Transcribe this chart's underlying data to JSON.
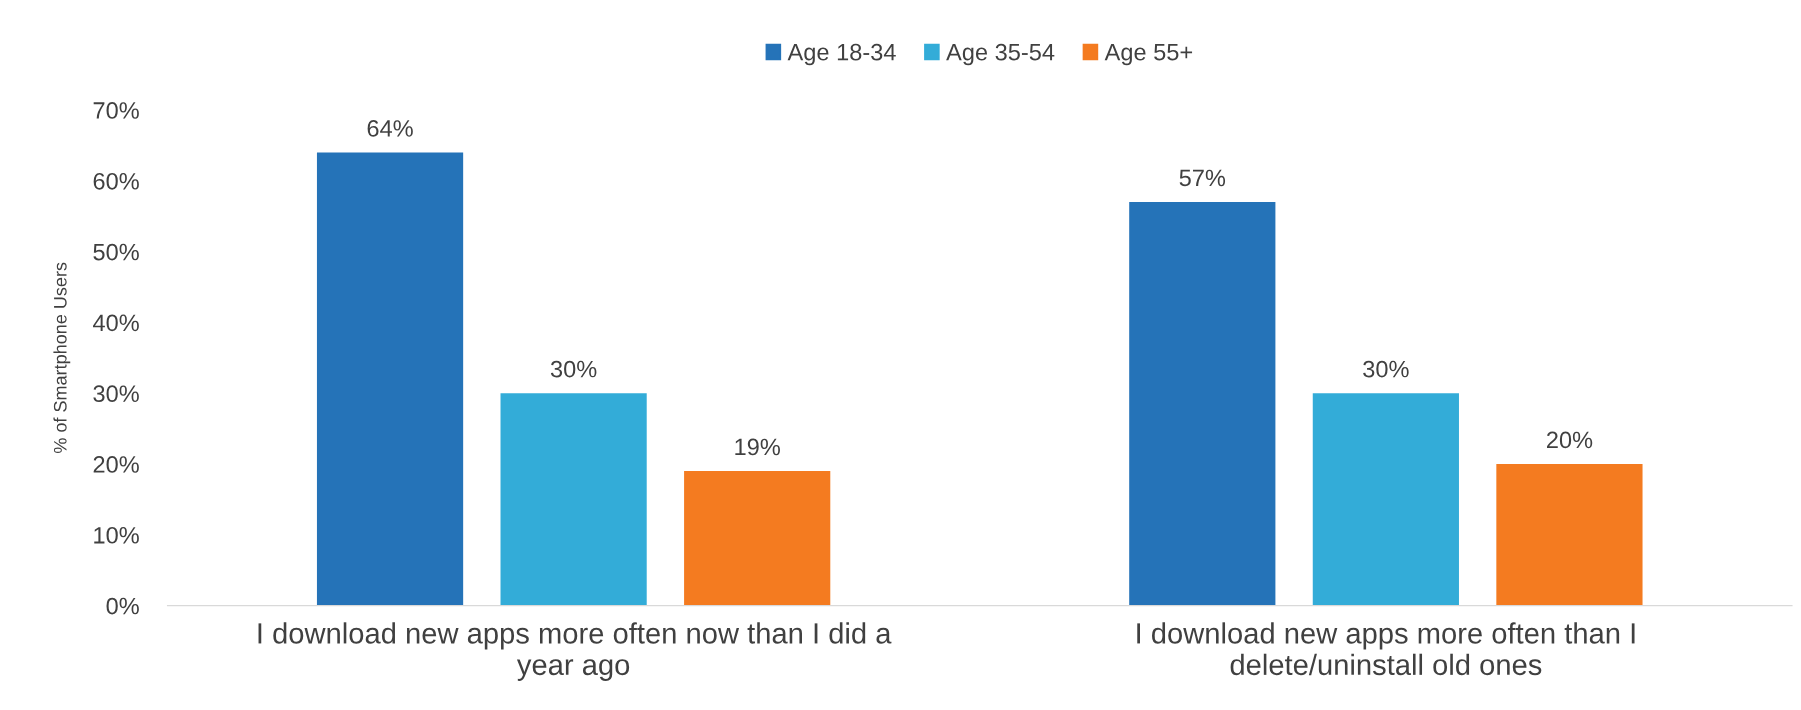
{
  "chart_data": {
    "type": "bar",
    "categories": [
      "I download new apps more often now than I did a\nyear ago",
      "I download new apps more often than I\ndelete/uninstall old ones"
    ],
    "ylabel": "% of Smartphone Users",
    "series": [
      {
        "name": "Age 18-34",
        "color": "#2573b8",
        "values": [
          64,
          57
        ],
        "value_labels": [
          "64%",
          "57%"
        ]
      },
      {
        "name": "Age 35-54",
        "color": "#33acd8",
        "values": [
          30,
          30
        ],
        "value_labels": [
          "30%",
          "30%"
        ]
      },
      {
        "name": "Age 55+",
        "color": "#f47b20",
        "values": [
          19,
          20
        ],
        "value_labels": [
          "19%",
          "20%"
        ]
      }
    ],
    "ylim": [
      0,
      70
    ],
    "yticks": [
      {
        "value": 0,
        "label": "0%"
      },
      {
        "value": 10,
        "label": "10%"
      },
      {
        "value": 20,
        "label": "20%"
      },
      {
        "value": 30,
        "label": "30%"
      },
      {
        "value": 40,
        "label": "40%"
      },
      {
        "value": 50,
        "label": "50%"
      },
      {
        "value": 60,
        "label": "60%"
      },
      {
        "value": 70,
        "label": "70%"
      }
    ],
    "grid": false,
    "legend": "top"
  }
}
